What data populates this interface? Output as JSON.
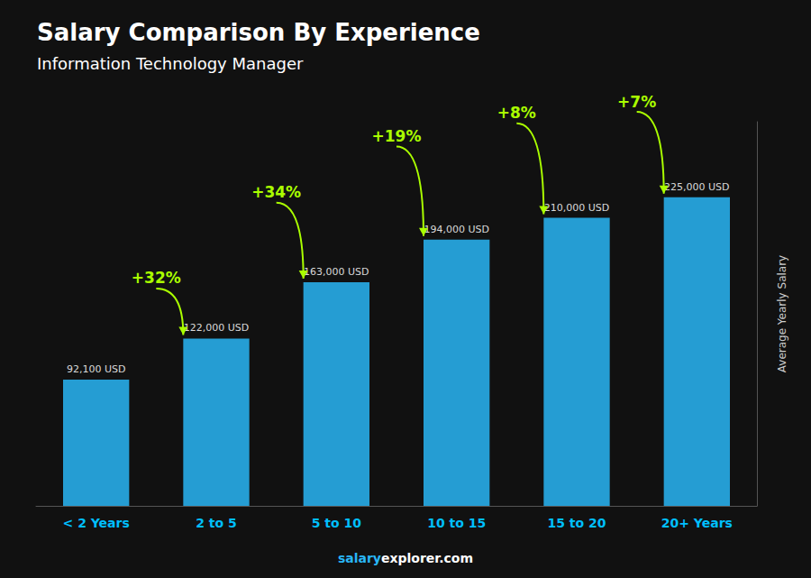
{
  "chart_data": {
    "type": "bar",
    "title": "Salary Comparison By Experience",
    "subtitle": "Information Technology Manager",
    "categories": [
      "< 2 Years",
      "2 to 5",
      "5 to 10",
      "10 to 15",
      "15 to 20",
      "20+ Years"
    ],
    "values": [
      92100,
      122000,
      163000,
      194000,
      210000,
      225000
    ],
    "value_labels": [
      "92,100 USD",
      "122,000 USD",
      "163,000 USD",
      "194,000 USD",
      "210,000 USD",
      "225,000 USD"
    ],
    "data_labels": true,
    "color": "#29B6F6",
    "ylabel": "Average Yearly Salary",
    "ylim": [
      0,
      280000
    ],
    "tick_labels": "x",
    "grid": false,
    "annotations": [
      {
        "text": "+32%",
        "color": "#aaff00"
      },
      {
        "text": "+34%",
        "color": "#aaff00"
      },
      {
        "text": "+19%",
        "color": "#aaff00"
      },
      {
        "text": "+8%",
        "color": "#aaff00"
      },
      {
        "text": "+7%",
        "color": "#aaff00"
      }
    ],
    "footer": "salaryexplorer.com",
    "footer_bold": "salary"
  }
}
